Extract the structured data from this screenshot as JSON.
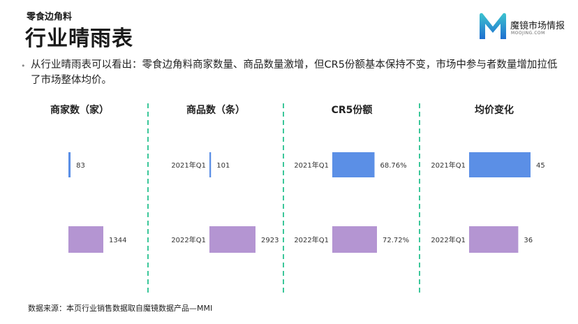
{
  "header": {
    "subtitle": "零食边角料",
    "title": "行业晴雨表"
  },
  "logo": {
    "name": "魔镜市场情报",
    "url": "MOOJING.COM",
    "colors": {
      "top": "#3dc3cf",
      "bottom": "#1e6fd0"
    }
  },
  "summary": "从行业晴雨表可以看出：零食边角料商家数量、商品数量激增，但CR5份额基本保持不变，市场中参与者数量增加拉低了市场整体均价。",
  "footer": "数据来源：本页行业销售数据取自魔镜数据产品—MMI",
  "colors": {
    "divider": "#3cc79a",
    "bar_2021": "#5b8fe6",
    "bar_2022": "#b495d2"
  },
  "chart_data": [
    {
      "type": "bar",
      "orientation": "horizontal",
      "title": "商家数（家）",
      "categories": [
        "",
        ""
      ],
      "values": [
        83,
        1344
      ],
      "value_labels": [
        "83",
        "1344"
      ],
      "xlim": [
        0,
        1344
      ]
    },
    {
      "type": "bar",
      "orientation": "horizontal",
      "title": "商品数（条）",
      "categories": [
        "2021年Q1",
        "2022年Q1"
      ],
      "values": [
        101,
        2923
      ],
      "value_labels": [
        "101",
        "2923"
      ],
      "xlim": [
        0,
        2923
      ]
    },
    {
      "type": "bar",
      "orientation": "horizontal",
      "title": "CR5份额",
      "categories": [
        "2021年Q1",
        "2022年Q1"
      ],
      "values": [
        68.76,
        72.72
      ],
      "value_labels": [
        "68.76%",
        "72.72%"
      ],
      "xlim": [
        0,
        72.72
      ]
    },
    {
      "type": "bar",
      "orientation": "horizontal",
      "title": "均价变化",
      "categories": [
        "2021年Q1",
        "2022年Q1"
      ],
      "values": [
        45,
        36
      ],
      "value_labels": [
        "45",
        "36"
      ],
      "xlim": [
        0,
        45
      ]
    }
  ]
}
